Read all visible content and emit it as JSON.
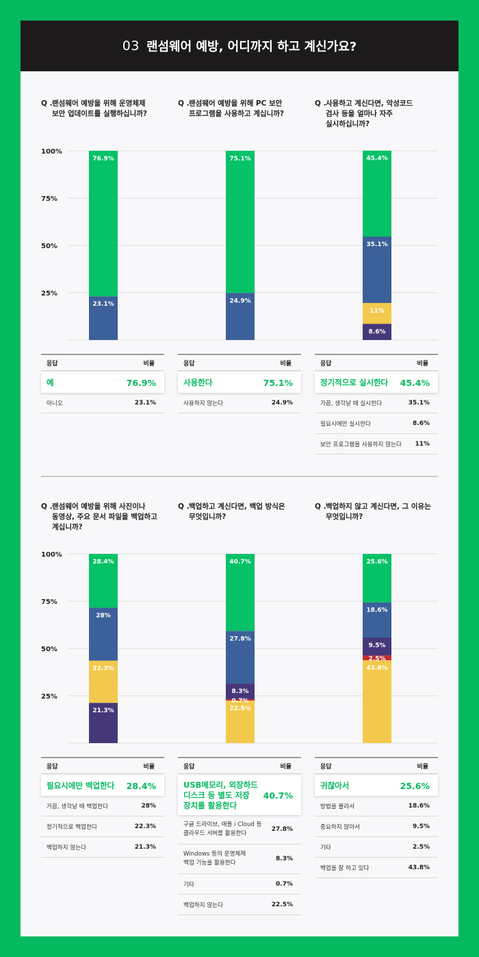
{
  "header": {
    "number": "03",
    "title": "랜섬웨어 예방, 어디까지 하고 계신가요?"
  },
  "table_headers": {
    "answer": "응답",
    "ratio": "비율"
  },
  "question_mark": "Q .",
  "colors": {
    "green": "#05c167",
    "blue": "#3c6099",
    "yellow": "#f2c94c",
    "purple": "#463878",
    "red": "#c62a2c"
  },
  "chart_data": [
    {
      "type": "bar",
      "stacked": true,
      "title": "랜섬웨어 예방을 위해 운영체제 보안 업데이트를 실행하십니까?",
      "y_ticks": [
        "100%",
        "75%",
        "50%",
        "25%"
      ],
      "ylim": [
        0,
        100
      ],
      "segments": [
        {
          "label": "아니오",
          "value": 23.1,
          "text": "23.1%",
          "color": "blue"
        },
        {
          "label": "예",
          "value": 76.9,
          "text": "76.9%",
          "color": "green"
        }
      ],
      "table": {
        "top": {
          "label": "예",
          "value": "76.9%"
        },
        "rows": [
          {
            "label": "아니오",
            "value": "23.1%"
          }
        ]
      }
    },
    {
      "type": "bar",
      "stacked": true,
      "title": "랜섬웨어 예방을 위해 PC 보안 프로그램을 사용하고 계십니까?",
      "ylim": [
        0,
        100
      ],
      "segments": [
        {
          "label": "사용하지 않는다",
          "value": 24.9,
          "text": "24.9%",
          "color": "blue"
        },
        {
          "label": "사용한다",
          "value": 75.1,
          "text": "75.1%",
          "color": "green"
        }
      ],
      "table": {
        "top": {
          "label": "사용한다",
          "value": "75.1%"
        },
        "rows": [
          {
            "label": "사용하지 않는다",
            "value": "24.9%"
          }
        ]
      }
    },
    {
      "type": "bar",
      "stacked": true,
      "title": "사용하고 계신다면, 악성코드 검사 등을 얼마나 자주 실시하십니까?",
      "ylim": [
        0,
        100
      ],
      "segments": [
        {
          "label": "필요시에만 실시한다",
          "value": 8.6,
          "text": "8.6%",
          "color": "purple"
        },
        {
          "label": "보안 프로그램을 사용하지 않는다",
          "value": 11,
          "text": "11%",
          "color": "yellow"
        },
        {
          "label": "가끔, 생각날 때 실시한다",
          "value": 35.1,
          "text": "35.1%",
          "color": "blue"
        },
        {
          "label": "정기적으로 실시한다",
          "value": 45.4,
          "text": "45.4%",
          "color": "green"
        }
      ],
      "table": {
        "top": {
          "label": "정기적으로 실시한다",
          "value": "45.4%"
        },
        "rows": [
          {
            "label": "가끔, 생각날 때 실시한다",
            "value": "35.1%"
          },
          {
            "label": "필요시에만 실시한다",
            "value": "8.6%"
          },
          {
            "label": "보안 프로그램을 사용하지 않는다",
            "value": "11%"
          }
        ]
      }
    },
    {
      "type": "bar",
      "stacked": true,
      "title": "랜섬웨어 예방을 위해 사진이나 동영상, 주요 문서 파일을 백업하고 계십니까?",
      "y_ticks": [
        "100%",
        "75%",
        "50%",
        "25%"
      ],
      "ylim": [
        0,
        100
      ],
      "segments": [
        {
          "label": "백업하지 않는다",
          "value": 21.3,
          "text": "21.3%",
          "color": "purple"
        },
        {
          "label": "정기적으로 백업한다",
          "value": 22.3,
          "text": "22.3%",
          "color": "yellow"
        },
        {
          "label": "가끔, 생각날 때 백업한다",
          "value": 28,
          "text": "28%",
          "color": "blue"
        },
        {
          "label": "필요시에만 백업한다",
          "value": 28.4,
          "text": "28.4%",
          "color": "green"
        }
      ],
      "table": {
        "top": {
          "label": "필요시에만 백업한다",
          "value": "28.4%"
        },
        "rows": [
          {
            "label": "가끔, 생각날 때 백업한다",
            "value": "28%"
          },
          {
            "label": "정기적으로 백업한다",
            "value": "22.3%"
          },
          {
            "label": "백업하지 않는다",
            "value": "21.3%"
          }
        ]
      }
    },
    {
      "type": "bar",
      "stacked": true,
      "title": "백업하고 계신다면, 백업 방식은 무엇입니까?",
      "ylim": [
        0,
        100
      ],
      "segments": [
        {
          "label": "백업하지 않는다",
          "value": 22.5,
          "text": "22.5%",
          "color": "yellow"
        },
        {
          "label": "기타",
          "value": 0.7,
          "text": "0.7%",
          "color": "red"
        },
        {
          "label": "Windows 등의 운영체제 백업 기능을 활용한다",
          "value": 8.3,
          "text": "8.3%",
          "color": "purple"
        },
        {
          "label": "구글 드라이브, 애플 i Cloud 등 클라우드 서버를 활용한다",
          "value": 27.8,
          "text": "27.8%",
          "color": "blue"
        },
        {
          "label": "USB메모리, 외장하드 디스크 등 별도 저장 장치를 활용한다",
          "value": 40.7,
          "text": "40.7%",
          "color": "green"
        }
      ],
      "table": {
        "top": {
          "label": "USB메모리, 외장하드 디스크 등 별도 저장 장치를 활용한다",
          "value": "40.7%"
        },
        "rows": [
          {
            "label": "구글 드라이브, 애플 i Cloud 등 클라우드 서버를 활용한다",
            "value": "27.8%"
          },
          {
            "label": "Windows 등의 운영체제 백업 기능을 활용한다",
            "value": "8.3%"
          },
          {
            "label": "기타",
            "value": "0.7%"
          },
          {
            "label": "백업하지 않는다",
            "value": "22.5%"
          }
        ]
      }
    },
    {
      "type": "bar",
      "stacked": true,
      "title": "백업하지 않고 계신다면, 그 이유는 무엇입니까?",
      "ylim": [
        0,
        100
      ],
      "segments": [
        {
          "label": "백업을 잘 하고 있다",
          "value": 43.8,
          "text": "43.8%",
          "color": "yellow"
        },
        {
          "label": "기타",
          "value": 2.5,
          "text": "2.5%",
          "color": "red"
        },
        {
          "label": "중요하지 않아서",
          "value": 9.5,
          "text": "9.5%",
          "color": "purple"
        },
        {
          "label": "방법을 몰라서",
          "value": 18.6,
          "text": "18.6%",
          "color": "blue"
        },
        {
          "label": "귀찮아서",
          "value": 25.6,
          "text": "25.6%",
          "color": "green"
        }
      ],
      "table": {
        "top": {
          "label": "귀찮아서",
          "value": "25.6%"
        },
        "rows": [
          {
            "label": "방법을 몰라서",
            "value": "18.6%"
          },
          {
            "label": "중요하지 않아서",
            "value": "9.5%"
          },
          {
            "label": "기타",
            "value": "2.5%"
          },
          {
            "label": "백업을 잘 하고 있다",
            "value": "43.8%"
          }
        ]
      }
    }
  ]
}
